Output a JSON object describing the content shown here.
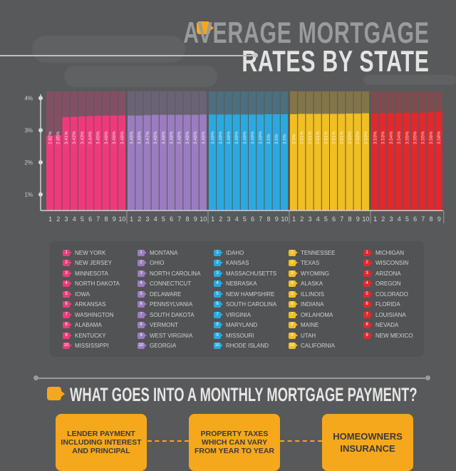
{
  "header": {
    "title_line1": "AVERAGE MORTGAGE",
    "title_line2": "RATES BY STATE"
  },
  "colors": {
    "background": "#58595b",
    "accent": "#f5a81c",
    "groups": [
      "#ee3a7c",
      "#9b7cc0",
      "#2aa9e0",
      "#f1bf22",
      "#e1282d"
    ]
  },
  "chart_data": {
    "type": "bar",
    "title": "AVERAGE MORTGAGE RATES BY STATE",
    "y_ticks": [
      "1%",
      "2%",
      "3%",
      "4%"
    ],
    "ylim": [
      0.5,
      4.2
    ],
    "grid": false,
    "groups": [
      {
        "states": [
          "NEW YORK",
          "NEW JERSEY",
          "MINNESOTA",
          "NORTH DAKOTA",
          "IOWA",
          "ARKANSAS",
          "WASHINGTON",
          "ALABAMA",
          "KENTUCKY",
          "MISSISSIPPI"
        ],
        "values": [
          2.82,
          2.85,
          3.41,
          3.42,
          3.43,
          3.44,
          3.45,
          3.46,
          3.46,
          3.46
        ],
        "labels": [
          "2.82%",
          "2.85%",
          "3.41%",
          "3.42%",
          "3.43%",
          "3.44%",
          "3.45%",
          "3.46%",
          "3.46%",
          "3.46%"
        ]
      },
      {
        "states": [
          "MONTANA",
          "OHIO",
          "NORTH CAROLINA",
          "CONNECTICUT",
          "DELAWARE",
          "PENNSYLVANIA",
          "SOUTH DAKOTA",
          "VERMONT",
          "WEST VIRGINIA",
          "GEORGIA"
        ],
        "values": [
          3.46,
          3.46,
          3.47,
          3.48,
          3.48,
          3.48,
          3.48,
          3.48,
          3.48,
          3.49
        ],
        "labels": [
          "3.46%",
          "3.46%",
          "3.47%",
          "3.48%",
          "3.48%",
          "3.48%",
          "3.48%",
          "3.48%",
          "3.48%",
          "3.49%"
        ]
      },
      {
        "states": [
          "IDAHO",
          "KANSAS",
          "MASSACHUSETTS",
          "NEBRASKA",
          "NEW HAMPSHIRE",
          "SOUTH CAROLINA",
          "VIRGINIA",
          "MARYLAND",
          "MISSOURI",
          "RHODE ISLAND"
        ],
        "values": [
          3.49,
          3.49,
          3.49,
          3.49,
          3.49,
          3.49,
          3.49,
          3.5,
          3.5,
          3.5
        ],
        "labels": [
          "3.49%",
          "3.49%",
          "3.49%",
          "3.49%",
          "3.49%",
          "3.49%",
          "3.49%",
          "3.5%",
          "3.5%",
          "3.5%"
        ]
      },
      {
        "states": [
          "TENNESSEE",
          "TEXAS",
          "WYOMING",
          "ALASKA",
          "ILLINOIS",
          "INDIANA",
          "OKLAHOMA",
          "MAINE",
          "UTAH",
          "CALIFORNIA"
        ],
        "values": [
          3.5,
          3.51,
          3.51,
          3.51,
          3.51,
          3.51,
          3.51,
          3.52,
          3.52,
          3.53
        ],
        "labels": [
          "3.5%",
          "3.51%",
          "3.51%",
          "3.51%",
          "3.51%",
          "3.51%",
          "3.51%",
          "3.52%",
          "3.52%",
          "3.53%"
        ]
      },
      {
        "states": [
          "MICHIGAN",
          "WISCONSIN",
          "ARIZONA",
          "OREGON",
          "COLORADO",
          "FLORIDA",
          "LOUISIANA",
          "NEVADA",
          "NEW MEXICO"
        ],
        "values": [
          3.53,
          3.53,
          3.54,
          3.54,
          3.55,
          3.55,
          3.55,
          3.56,
          3.58
        ],
        "labels": [
          "3.53%",
          "3.53%",
          "3.54%",
          "3.54%",
          "3.55%",
          "3.55%",
          "3.55%",
          "3.56%",
          "3.58%"
        ]
      }
    ]
  },
  "section2": {
    "heading": "WHAT GOES INTO A MONTHLY MORTGAGE PAYMENT?",
    "boxes": [
      "LENDER PAYMENT INCLUDING INTEREST AND PRINCIPAL",
      "PROPERTY TAXES WHICH CAN VARY FROM YEAR TO YEAR",
      "HOMEOWNERS INSURANCE"
    ]
  }
}
